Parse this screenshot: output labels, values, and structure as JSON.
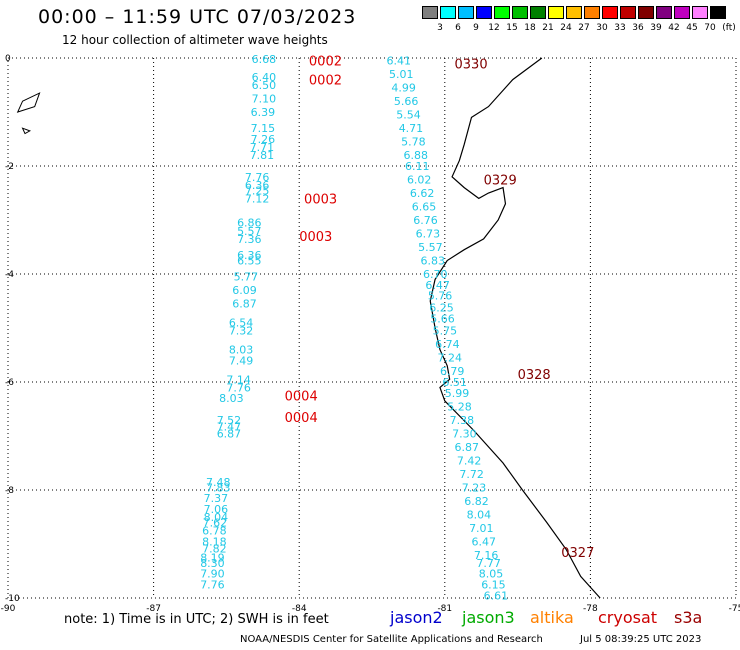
{
  "title": "00:00 – 11:59 UTC 07/03/2023",
  "subtitle": "12 hour collection of altimeter wave heights",
  "colorbar": {
    "unit": "(ft)",
    "labels": [
      "3",
      "6",
      "9",
      "12",
      "15",
      "18",
      "21",
      "24",
      "27",
      "30",
      "33",
      "36",
      "39",
      "42",
      "45",
      "70"
    ],
    "colors": [
      "#7f7f7f",
      "#00ffff",
      "#00bfff",
      "#0000ff",
      "#00ff00",
      "#00bf00",
      "#008000",
      "#ffff00",
      "#ffbf00",
      "#ff8000",
      "#ff0000",
      "#bf0000",
      "#800000",
      "#800080",
      "#bf00bf",
      "#ff80ff",
      "#000000"
    ]
  },
  "map": {
    "lon_range": [
      -90,
      -75
    ],
    "lat_range": [
      -10,
      0
    ],
    "x_ticks": [
      "-90",
      "-87",
      "-84",
      "-81",
      "-78",
      "-75"
    ],
    "y_ticks": [
      "0",
      "-2",
      "-4",
      "-6",
      "-8",
      "-10"
    ]
  },
  "track_times": [
    {
      "text": "0002",
      "lon": -83.8,
      "lat": -0.05,
      "color": "#dd0000"
    },
    {
      "text": "0002",
      "lon": -83.8,
      "lat": -0.4,
      "color": "#dd0000"
    },
    {
      "text": "0330",
      "lon": -80.8,
      "lat": -0.1,
      "color": "#800000"
    },
    {
      "text": "0329",
      "lon": -80.2,
      "lat": -2.25,
      "color": "#800000"
    },
    {
      "text": "0003",
      "lon": -83.9,
      "lat": -2.6,
      "color": "#dd0000"
    },
    {
      "text": "0003",
      "lon": -84.0,
      "lat": -3.3,
      "color": "#dd0000"
    },
    {
      "text": "0328",
      "lon": -79.5,
      "lat": -5.85,
      "color": "#800000"
    },
    {
      "text": "0004",
      "lon": -84.3,
      "lat": -6.25,
      "color": "#dd0000"
    },
    {
      "text": "0004",
      "lon": -84.3,
      "lat": -6.65,
      "color": "#dd0000"
    },
    {
      "text": "0327",
      "lon": -78.6,
      "lat": -9.15,
      "color": "#800000"
    }
  ],
  "wave_heights": [
    {
      "v": "6.68",
      "lon": -84.98,
      "lat": -0.02
    },
    {
      "v": "6.40",
      "lon": -84.98,
      "lat": -0.35
    },
    {
      "v": "6.50",
      "lon": -84.98,
      "lat": -0.5
    },
    {
      "v": "7.10",
      "lon": -84.98,
      "lat": -0.75
    },
    {
      "v": "6.39",
      "lon": -85.0,
      "lat": -1.0
    },
    {
      "v": "7.15",
      "lon": -85.0,
      "lat": -1.3
    },
    {
      "v": "7.26",
      "lon": -85.0,
      "lat": -1.5
    },
    {
      "v": "7.71",
      "lon": -85.02,
      "lat": -1.65
    },
    {
      "v": "7.81",
      "lon": -85.02,
      "lat": -1.8
    },
    {
      "v": "7.76",
      "lon": -85.12,
      "lat": -2.2
    },
    {
      "v": "6.36",
      "lon": -85.12,
      "lat": -2.35
    },
    {
      "v": "7.25",
      "lon": -85.12,
      "lat": -2.45
    },
    {
      "v": "7.12",
      "lon": -85.12,
      "lat": -2.6
    },
    {
      "v": "6.86",
      "lon": -85.28,
      "lat": -3.05
    },
    {
      "v": "5.57",
      "lon": -85.28,
      "lat": -3.2
    },
    {
      "v": "7.36",
      "lon": -85.28,
      "lat": -3.35
    },
    {
      "v": "6.36",
      "lon": -85.28,
      "lat": -3.65
    },
    {
      "v": "6.55",
      "lon": -85.28,
      "lat": -3.75
    },
    {
      "v": "5.77",
      "lon": -85.35,
      "lat": -4.05
    },
    {
      "v": "6.09",
      "lon": -85.38,
      "lat": -4.3
    },
    {
      "v": "6.87",
      "lon": -85.38,
      "lat": -4.55
    },
    {
      "v": "6.54",
      "lon": -85.45,
      "lat": -4.9
    },
    {
      "v": "7.32",
      "lon": -85.45,
      "lat": -5.05
    },
    {
      "v": "8.03",
      "lon": -85.45,
      "lat": -5.4
    },
    {
      "v": "7.49",
      "lon": -85.45,
      "lat": -5.6
    },
    {
      "v": "7.14",
      "lon": -85.5,
      "lat": -5.95
    },
    {
      "v": "7.76",
      "lon": -85.5,
      "lat": -6.1
    },
    {
      "v": "8.03",
      "lon": -85.65,
      "lat": -6.3
    },
    {
      "v": "7.52",
      "lon": -85.7,
      "lat": -6.7
    },
    {
      "v": "7.47",
      "lon": -85.7,
      "lat": -6.82
    },
    {
      "v": "6.87",
      "lon": -85.7,
      "lat": -6.95
    },
    {
      "v": "7.48",
      "lon": -85.92,
      "lat": -7.85
    },
    {
      "v": "7.83",
      "lon": -85.92,
      "lat": -7.95
    },
    {
      "v": "7.37",
      "lon": -85.97,
      "lat": -8.15
    },
    {
      "v": "7.06",
      "lon": -85.97,
      "lat": -8.35
    },
    {
      "v": "8.04",
      "lon": -85.97,
      "lat": -8.5
    },
    {
      "v": "7.62",
      "lon": -85.99,
      "lat": -8.6
    },
    {
      "v": "6.78",
      "lon": -86.0,
      "lat": -8.75
    },
    {
      "v": "8.18",
      "lon": -86.0,
      "lat": -8.95
    },
    {
      "v": "7.82",
      "lon": -86.0,
      "lat": -9.08
    },
    {
      "v": "8.19",
      "lon": -86.04,
      "lat": -9.25
    },
    {
      "v": "8.30",
      "lon": -86.04,
      "lat": -9.35
    },
    {
      "v": "7.90",
      "lon": -86.04,
      "lat": -9.55
    },
    {
      "v": "7.76",
      "lon": -86.04,
      "lat": -9.75
    },
    {
      "v": "6.41",
      "lon": -82.2,
      "lat": -0.05
    },
    {
      "v": "5.01",
      "lon": -82.15,
      "lat": -0.3
    },
    {
      "v": "4.99",
      "lon": -82.1,
      "lat": -0.55
    },
    {
      "v": "5.66",
      "lon": -82.05,
      "lat": -0.8
    },
    {
      "v": "5.54",
      "lon": -82.0,
      "lat": -1.05
    },
    {
      "v": "4.71",
      "lon": -81.95,
      "lat": -1.3
    },
    {
      "v": "5.78",
      "lon": -81.9,
      "lat": -1.55
    },
    {
      "v": "6.88",
      "lon": -81.85,
      "lat": -1.8
    },
    {
      "v": "6.11",
      "lon": -81.82,
      "lat": -2.0
    },
    {
      "v": "6.02",
      "lon": -81.78,
      "lat": -2.25
    },
    {
      "v": "6.62",
      "lon": -81.72,
      "lat": -2.5
    },
    {
      "v": "6.65",
      "lon": -81.68,
      "lat": -2.75
    },
    {
      "v": "6.76",
      "lon": -81.65,
      "lat": -3.0
    },
    {
      "v": "6.73",
      "lon": -81.6,
      "lat": -3.25
    },
    {
      "v": "5.57",
      "lon": -81.55,
      "lat": -3.5
    },
    {
      "v": "6.83",
      "lon": -81.5,
      "lat": -3.75
    },
    {
      "v": "6.70",
      "lon": -81.45,
      "lat": -4.0
    },
    {
      "v": "6.47",
      "lon": -81.4,
      "lat": -4.2
    },
    {
      "v": "5.76",
      "lon": -81.35,
      "lat": -4.4
    },
    {
      "v": "6.25",
      "lon": -81.32,
      "lat": -4.62
    },
    {
      "v": "5.66",
      "lon": -81.3,
      "lat": -4.82
    },
    {
      "v": "5.75",
      "lon": -81.25,
      "lat": -5.05
    },
    {
      "v": "6.74",
      "lon": -81.2,
      "lat": -5.3
    },
    {
      "v": "7.24",
      "lon": -81.15,
      "lat": -5.55
    },
    {
      "v": "6.79",
      "lon": -81.1,
      "lat": -5.8
    },
    {
      "v": "6.51",
      "lon": -81.05,
      "lat": -6.0
    },
    {
      "v": "5.99",
      "lon": -81.0,
      "lat": -6.2
    },
    {
      "v": "5.28",
      "lon": -80.95,
      "lat": -6.45
    },
    {
      "v": "7.38",
      "lon": -80.9,
      "lat": -6.7
    },
    {
      "v": "7.30",
      "lon": -80.85,
      "lat": -6.95
    },
    {
      "v": "6.87",
      "lon": -80.8,
      "lat": -7.2
    },
    {
      "v": "7.42",
      "lon": -80.75,
      "lat": -7.45
    },
    {
      "v": "7.72",
      "lon": -80.7,
      "lat": -7.7
    },
    {
      "v": "7.23",
      "lon": -80.65,
      "lat": -7.95
    },
    {
      "v": "6.82",
      "lon": -80.6,
      "lat": -8.2
    },
    {
      "v": "8.04",
      "lon": -80.55,
      "lat": -8.45
    },
    {
      "v": "7.01",
      "lon": -80.5,
      "lat": -8.7
    },
    {
      "v": "6.47",
      "lon": -80.45,
      "lat": -8.95
    },
    {
      "v": "7.16",
      "lon": -80.4,
      "lat": -9.2
    },
    {
      "v": "7.77",
      "lon": -80.35,
      "lat": -9.35
    },
    {
      "v": "8.05",
      "lon": -80.3,
      "lat": -9.55
    },
    {
      "v": "6.15",
      "lon": -80.25,
      "lat": -9.75
    },
    {
      "v": "6.61",
      "lon": -80.2,
      "lat": -9.95
    }
  ],
  "coastline": [
    [
      -79.0,
      0.0
    ],
    [
      -79.6,
      -0.4
    ],
    [
      -80.1,
      -0.9
    ],
    [
      -80.45,
      -1.1
    ],
    [
      -80.6,
      -1.6
    ],
    [
      -80.7,
      -1.9
    ],
    [
      -80.85,
      -2.2
    ],
    [
      -80.6,
      -2.4
    ],
    [
      -80.3,
      -2.6
    ],
    [
      -80.1,
      -2.5
    ],
    [
      -79.8,
      -2.4
    ],
    [
      -79.75,
      -2.7
    ],
    [
      -79.9,
      -3.0
    ],
    [
      -80.2,
      -3.35
    ],
    [
      -80.6,
      -3.55
    ],
    [
      -80.95,
      -3.75
    ],
    [
      -81.2,
      -4.1
    ],
    [
      -81.3,
      -4.5
    ],
    [
      -81.2,
      -5.0
    ],
    [
      -81.1,
      -5.4
    ],
    [
      -80.95,
      -5.7
    ],
    [
      -80.9,
      -5.95
    ],
    [
      -81.1,
      -6.1
    ],
    [
      -81.0,
      -6.35
    ],
    [
      -80.4,
      -6.9
    ],
    [
      -79.8,
      -7.5
    ],
    [
      -79.4,
      -8.0
    ],
    [
      -78.9,
      -8.6
    ],
    [
      -78.5,
      -9.1
    ],
    [
      -78.2,
      -9.6
    ],
    [
      -77.8,
      -10.0
    ]
  ],
  "islands": [
    [
      [
        -89.7,
        -0.8
      ],
      [
        -89.35,
        -0.65
      ],
      [
        -89.45,
        -0.9
      ],
      [
        -89.8,
        -1.0
      ]
    ],
    [
      [
        -89.7,
        -1.3
      ],
      [
        -89.55,
        -1.35
      ],
      [
        -89.65,
        -1.4
      ]
    ]
  ],
  "note": "note: 1) Time is in UTC; 2) SWH is in feet",
  "legend": [
    {
      "name": "jason2",
      "color": "#0000cc"
    },
    {
      "name": "jason3",
      "color": "#00aa00"
    },
    {
      "name": "altika",
      "color": "#ff8000"
    },
    {
      "name": "cryosat",
      "color": "#cc0000"
    },
    {
      "name": "s3a",
      "color": "#990000"
    }
  ],
  "credit": "NOAA/NESDIS Center for Satellite Applications and Research",
  "timestamp": "Jul  5 08:39:25 UTC 2023"
}
